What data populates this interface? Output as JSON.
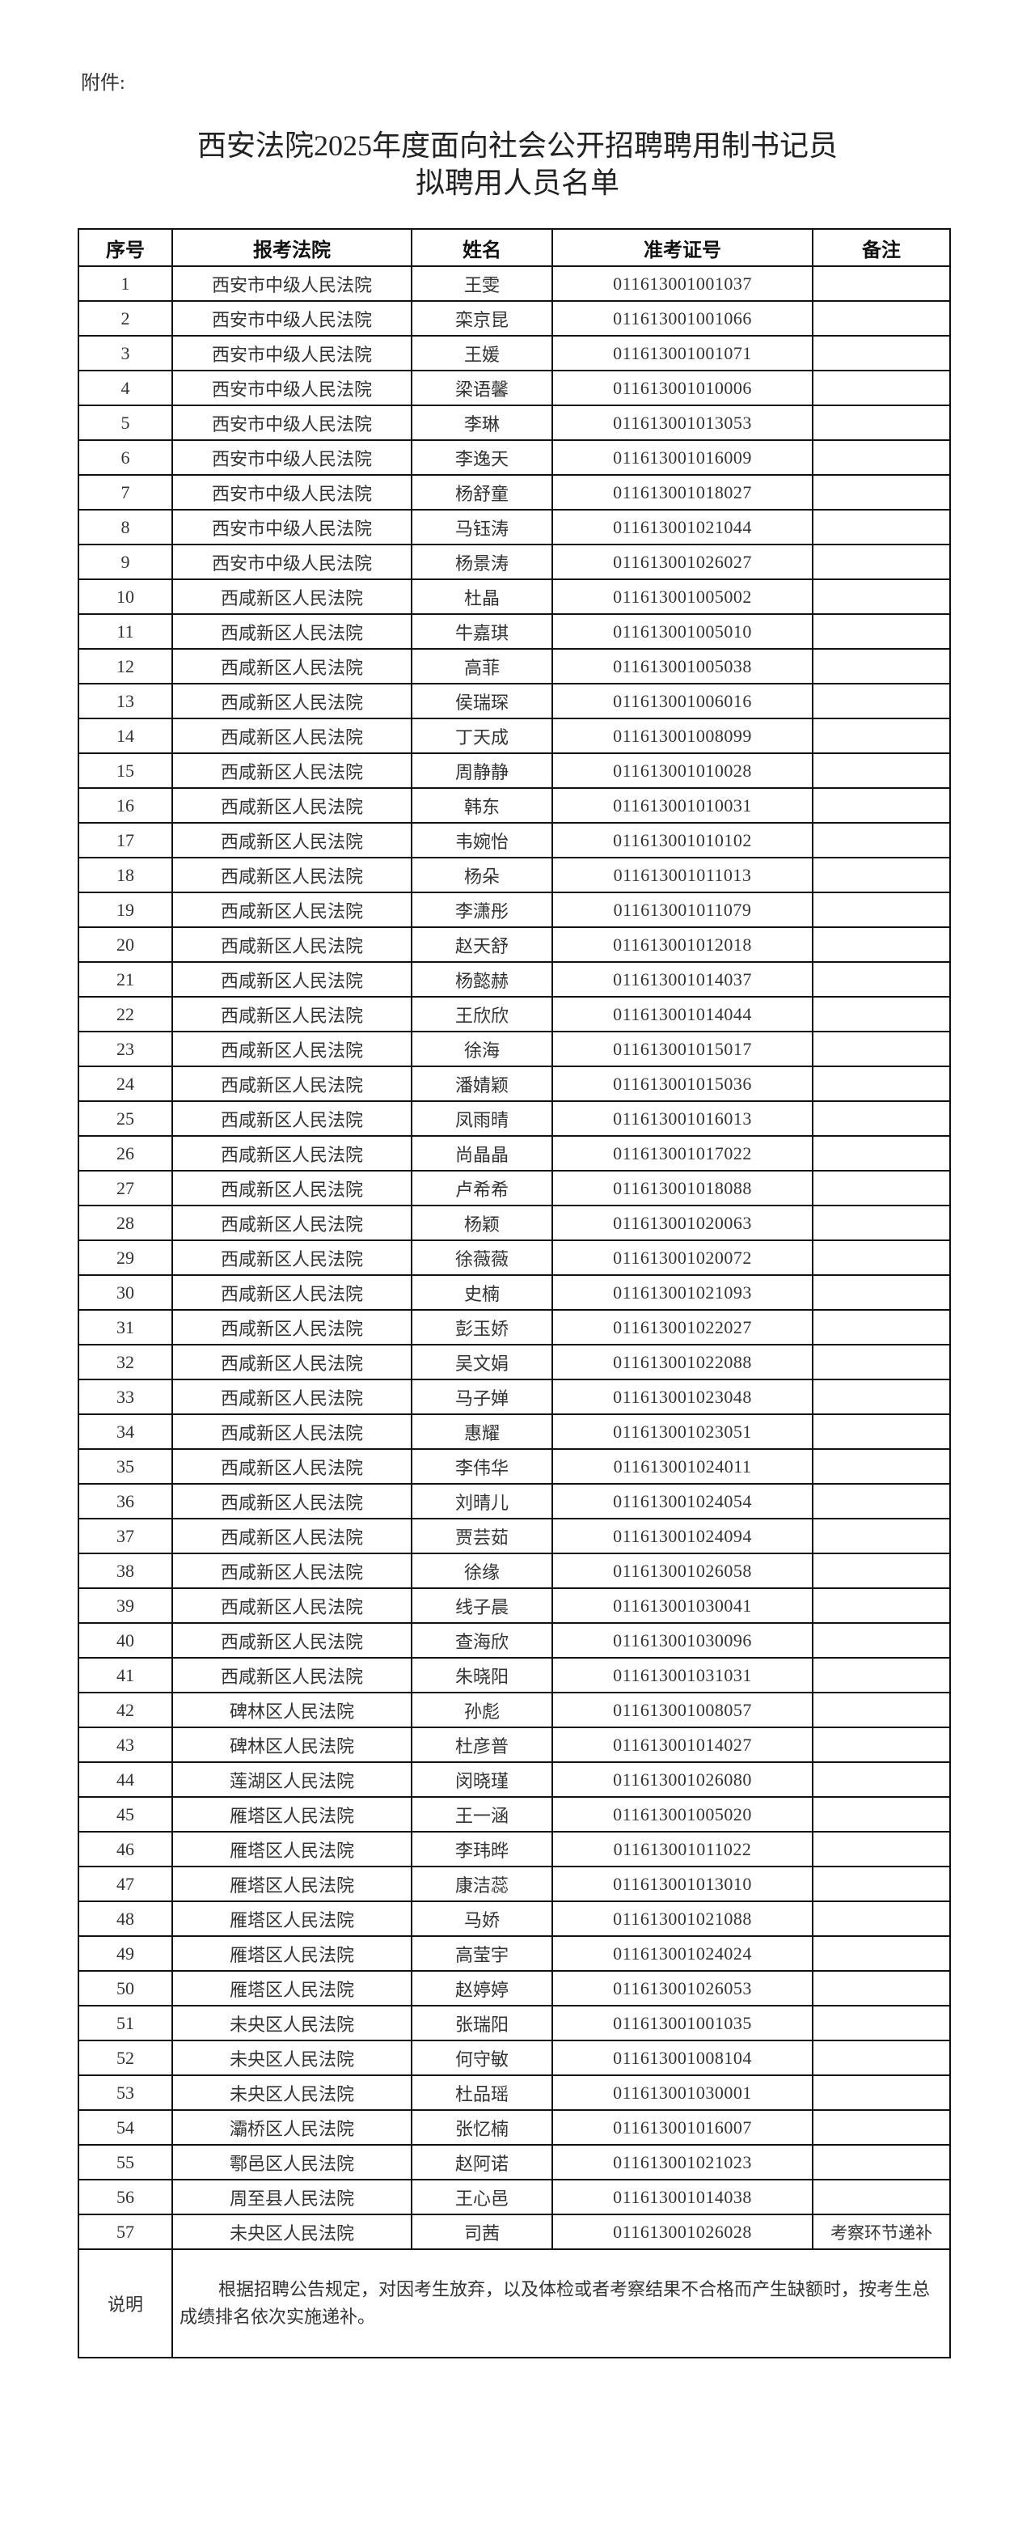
{
  "attachment_label": "附件:",
  "title_line1": "西安法院2025年度面向社会公开招聘聘用制书记员",
  "title_line2": "拟聘用人员名单",
  "table": {
    "headers": [
      "序号",
      "报考法院",
      "姓名",
      "准考证号",
      "备注"
    ],
    "rows": [
      [
        "1",
        "西安市中级人民法院",
        "王雯",
        "011613001001037",
        ""
      ],
      [
        "2",
        "西安市中级人民法院",
        "栾京昆",
        "011613001001066",
        ""
      ],
      [
        "3",
        "西安市中级人民法院",
        "王媛",
        "011613001001071",
        ""
      ],
      [
        "4",
        "西安市中级人民法院",
        "梁语馨",
        "011613001010006",
        ""
      ],
      [
        "5",
        "西安市中级人民法院",
        "李琳",
        "011613001013053",
        ""
      ],
      [
        "6",
        "西安市中级人民法院",
        "李逸天",
        "011613001016009",
        ""
      ],
      [
        "7",
        "西安市中级人民法院",
        "杨舒童",
        "011613001018027",
        ""
      ],
      [
        "8",
        "西安市中级人民法院",
        "马钰涛",
        "011613001021044",
        ""
      ],
      [
        "9",
        "西安市中级人民法院",
        "杨景涛",
        "011613001026027",
        ""
      ],
      [
        "10",
        "西咸新区人民法院",
        "杜晶",
        "011613001005002",
        ""
      ],
      [
        "11",
        "西咸新区人民法院",
        "牛嘉琪",
        "011613001005010",
        ""
      ],
      [
        "12",
        "西咸新区人民法院",
        "高菲",
        "011613001005038",
        ""
      ],
      [
        "13",
        "西咸新区人民法院",
        "侯瑞琛",
        "011613001006016",
        ""
      ],
      [
        "14",
        "西咸新区人民法院",
        "丁天成",
        "011613001008099",
        ""
      ],
      [
        "15",
        "西咸新区人民法院",
        "周静静",
        "011613001010028",
        ""
      ],
      [
        "16",
        "西咸新区人民法院",
        "韩东",
        "011613001010031",
        ""
      ],
      [
        "17",
        "西咸新区人民法院",
        "韦婉怡",
        "011613001010102",
        ""
      ],
      [
        "18",
        "西咸新区人民法院",
        "杨朵",
        "011613001011013",
        ""
      ],
      [
        "19",
        "西咸新区人民法院",
        "李潇彤",
        "011613001011079",
        ""
      ],
      [
        "20",
        "西咸新区人民法院",
        "赵天舒",
        "011613001012018",
        ""
      ],
      [
        "21",
        "西咸新区人民法院",
        "杨懿赫",
        "011613001014037",
        ""
      ],
      [
        "22",
        "西咸新区人民法院",
        "王欣欣",
        "011613001014044",
        ""
      ],
      [
        "23",
        "西咸新区人民法院",
        "徐海",
        "011613001015017",
        ""
      ],
      [
        "24",
        "西咸新区人民法院",
        "潘婧颖",
        "011613001015036",
        ""
      ],
      [
        "25",
        "西咸新区人民法院",
        "凤雨晴",
        "011613001016013",
        ""
      ],
      [
        "26",
        "西咸新区人民法院",
        "尚晶晶",
        "011613001017022",
        ""
      ],
      [
        "27",
        "西咸新区人民法院",
        "卢希希",
        "011613001018088",
        ""
      ],
      [
        "28",
        "西咸新区人民法院",
        "杨颖",
        "011613001020063",
        ""
      ],
      [
        "29",
        "西咸新区人民法院",
        "徐薇薇",
        "011613001020072",
        ""
      ],
      [
        "30",
        "西咸新区人民法院",
        "史楠",
        "011613001021093",
        ""
      ],
      [
        "31",
        "西咸新区人民法院",
        "彭玉娇",
        "011613001022027",
        ""
      ],
      [
        "32",
        "西咸新区人民法院",
        "吴文娟",
        "011613001022088",
        ""
      ],
      [
        "33",
        "西咸新区人民法院",
        "马子婵",
        "011613001023048",
        ""
      ],
      [
        "34",
        "西咸新区人民法院",
        "惠耀",
        "011613001023051",
        ""
      ],
      [
        "35",
        "西咸新区人民法院",
        "李伟华",
        "011613001024011",
        ""
      ],
      [
        "36",
        "西咸新区人民法院",
        "刘晴儿",
        "011613001024054",
        ""
      ],
      [
        "37",
        "西咸新区人民法院",
        "贾芸茹",
        "011613001024094",
        ""
      ],
      [
        "38",
        "西咸新区人民法院",
        "徐缘",
        "011613001026058",
        ""
      ],
      [
        "39",
        "西咸新区人民法院",
        "线子晨",
        "011613001030041",
        ""
      ],
      [
        "40",
        "西咸新区人民法院",
        "查海欣",
        "011613001030096",
        ""
      ],
      [
        "41",
        "西咸新区人民法院",
        "朱晓阳",
        "011613001031031",
        ""
      ],
      [
        "42",
        "碑林区人民法院",
        "孙彪",
        "011613001008057",
        ""
      ],
      [
        "43",
        "碑林区人民法院",
        "杜彦普",
        "011613001014027",
        ""
      ],
      [
        "44",
        "莲湖区人民法院",
        "闵晓瑾",
        "011613001026080",
        ""
      ],
      [
        "45",
        "雁塔区人民法院",
        "王一涵",
        "011613001005020",
        ""
      ],
      [
        "46",
        "雁塔区人民法院",
        "李玮晔",
        "011613001011022",
        ""
      ],
      [
        "47",
        "雁塔区人民法院",
        "康洁蕊",
        "011613001013010",
        ""
      ],
      [
        "48",
        "雁塔区人民法院",
        "马娇",
        "011613001021088",
        ""
      ],
      [
        "49",
        "雁塔区人民法院",
        "高莹宇",
        "011613001024024",
        ""
      ],
      [
        "50",
        "雁塔区人民法院",
        "赵婷婷",
        "011613001026053",
        ""
      ],
      [
        "51",
        "未央区人民法院",
        "张瑞阳",
        "011613001001035",
        ""
      ],
      [
        "52",
        "未央区人民法院",
        "何守敏",
        "011613001008104",
        ""
      ],
      [
        "53",
        "未央区人民法院",
        "杜品瑶",
        "011613001030001",
        ""
      ],
      [
        "54",
        "灞桥区人民法院",
        "张忆楠",
        "011613001016007",
        ""
      ],
      [
        "55",
        "鄠邑区人民法院",
        "赵阿诺",
        "011613001021023",
        ""
      ],
      [
        "56",
        "周至县人民法院",
        "王心邑",
        "011613001014038",
        ""
      ],
      [
        "57",
        "未央区人民法院",
        "司茜",
        "011613001026028",
        "考察环节递补"
      ]
    ],
    "explanation_label": "说明",
    "explanation_text": "根据招聘公告规定，对因考生放弃，以及体检或者考察结果不合格而产生缺额时，按考生总成绩排名依次实施递补。"
  }
}
